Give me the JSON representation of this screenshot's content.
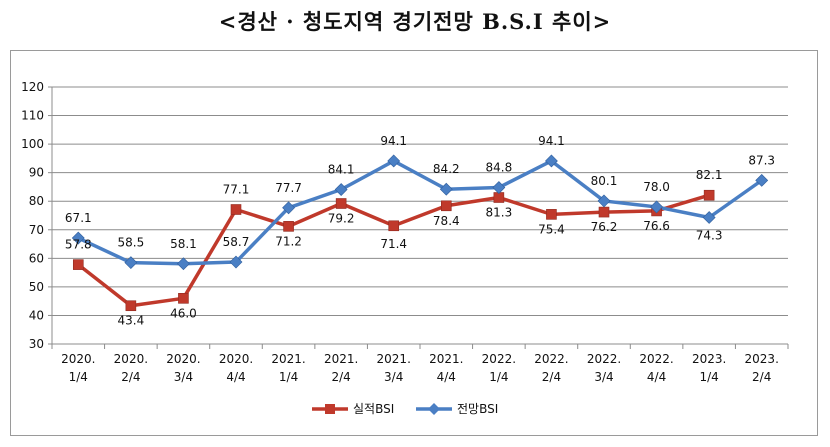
{
  "title": "<경산 · 청도지역 경기전망 B.S.I 추이>",
  "chart_data": {
    "type": "line",
    "categories": [
      [
        "2020.",
        "1/4"
      ],
      [
        "2020.",
        "2/4"
      ],
      [
        "2020.",
        "3/4"
      ],
      [
        "2020.",
        "4/4"
      ],
      [
        "2021.",
        "1/4"
      ],
      [
        "2021.",
        "2/4"
      ],
      [
        "2021.",
        "3/4"
      ],
      [
        "2021.",
        "4/4"
      ],
      [
        "2022.",
        "1/4"
      ],
      [
        "2022.",
        "2/4"
      ],
      [
        "2022.",
        "3/4"
      ],
      [
        "2022.",
        "4/4"
      ],
      [
        "2023.",
        "1/4"
      ],
      [
        "2023.",
        "2/4"
      ]
    ],
    "ylim": [
      30,
      120
    ],
    "yticks": [
      30,
      40,
      50,
      60,
      70,
      80,
      90,
      100,
      110,
      120
    ],
    "grid": true,
    "legend_position": "bottom",
    "series": [
      {
        "name": "실적BSI",
        "color": "#c0392b",
        "marker": "square",
        "values": [
          57.8,
          43.4,
          46.0,
          77.1,
          71.2,
          79.2,
          71.4,
          78.4,
          81.3,
          75.4,
          76.2,
          76.6,
          82.1,
          null
        ],
        "labels": [
          "57.8",
          "43.4",
          "46.0",
          "77.1",
          "71.2",
          "79.2",
          "71.4",
          "78.4",
          "81.3",
          "75.4",
          "76.2",
          "76.6",
          "82.1",
          null
        ]
      },
      {
        "name": "전망BSI",
        "color": "#4a7fc4",
        "marker": "diamond",
        "values": [
          67.1,
          58.5,
          58.1,
          58.7,
          77.7,
          84.1,
          94.1,
          84.2,
          84.8,
          94.1,
          80.1,
          78.0,
          74.3,
          87.3
        ],
        "labels": [
          "67.1",
          "58.5",
          "58.1",
          "58.7",
          "77.7",
          "84.1",
          "94.1",
          "84.2",
          "84.8",
          "94.1",
          "80.1",
          "78.0",
          "74.3",
          "87.3"
        ]
      }
    ]
  }
}
